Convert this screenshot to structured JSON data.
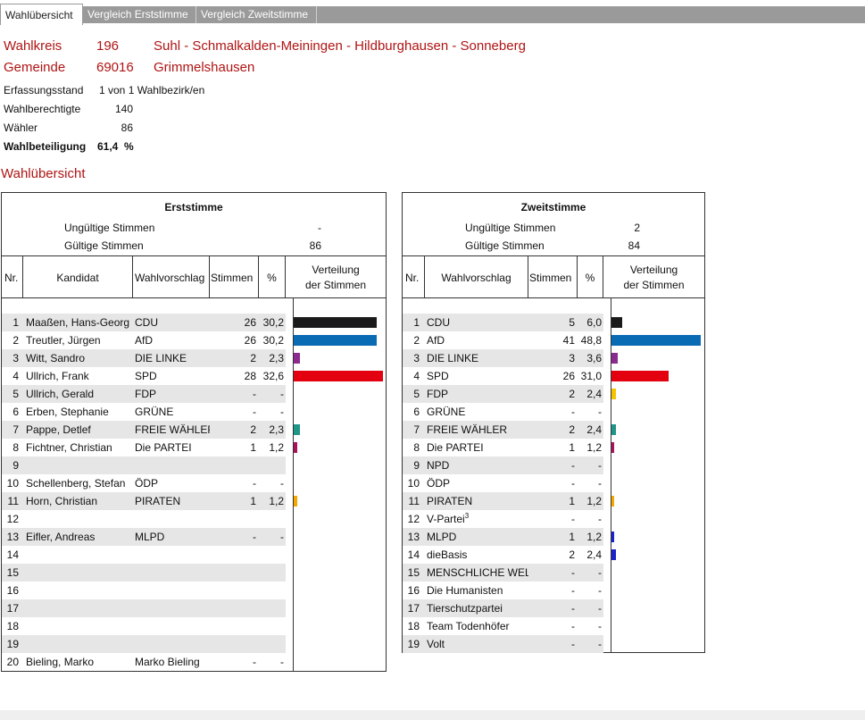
{
  "tabs": [
    {
      "label": "Wahlübersicht",
      "active": true
    },
    {
      "label": "Vergleich Erststimme",
      "active": false
    },
    {
      "label": "Vergleich Zweitstimme",
      "active": false
    }
  ],
  "header": {
    "wahlkreis_label": "Wahlkreis",
    "wahlkreis_nr": "196",
    "wahlkreis_name": "Suhl - Schmalkalden-Meiningen - Hildburghausen - Sonneberg",
    "gemeinde_label": "Gemeinde",
    "gemeinde_nr": "69016",
    "gemeinde_name": "Grimmelshausen"
  },
  "stats": {
    "erfassungsstand_label": "Erfassungsstand",
    "erfassungsstand_value": "1 von 1 Wahlbezirk/en",
    "wahlberechtigte_label": "Wahlberechtigte",
    "wahlberechtigte_value": "140",
    "waehler_label": "Wähler",
    "waehler_value": "86",
    "wahlbeteiligung_label": "Wahlbeteiligung",
    "wahlbeteiligung_value": "61,4",
    "wahlbeteiligung_unit": "%"
  },
  "section_title": "Wahlübersicht",
  "erst": {
    "title": "Erststimme",
    "ungueltig_label": "Ungültige Stimmen",
    "ungueltig_value": "-",
    "gueltig_label": "Gültige Stimmen",
    "gueltig_value": "86",
    "col_nr": "Nr.",
    "col_kandidat": "Kandidat",
    "col_wahlvorschlag": "Wahlvorschlag",
    "col_stimmen": "Stimmen",
    "col_pct": "%",
    "col_verteilung_1": "Verteilung",
    "col_verteilung_2": "der Stimmen",
    "rows": [
      {
        "nr": "1",
        "kandidat": "Maaßen, Hans-Georg",
        "vorschlag": "CDU",
        "stimmen": "26",
        "pct": "30,2",
        "value": 30.2,
        "color": "#1a1a1a"
      },
      {
        "nr": "2",
        "kandidat": "Treutler, Jürgen",
        "vorschlag": "AfD",
        "stimmen": "26",
        "pct": "30,2",
        "value": 30.2,
        "color": "#0a6bb5"
      },
      {
        "nr": "3",
        "kandidat": "Witt, Sandro",
        "vorschlag": "DIE LINKE",
        "stimmen": "2",
        "pct": "2,3",
        "value": 2.3,
        "color": "#8b2a8f"
      },
      {
        "nr": "4",
        "kandidat": "Ullrich, Frank",
        "vorschlag": "SPD",
        "stimmen": "28",
        "pct": "32,6",
        "value": 32.6,
        "color": "#e3000f"
      },
      {
        "nr": "5",
        "kandidat": "Ullrich, Gerald",
        "vorschlag": "FDP",
        "stimmen": "-",
        "pct": "-",
        "value": 0,
        "color": "#f5c400"
      },
      {
        "nr": "6",
        "kandidat": "Erben, Stephanie",
        "vorschlag": "GRÜNE",
        "stimmen": "-",
        "pct": "-",
        "value": 0,
        "color": "#3a9d23"
      },
      {
        "nr": "7",
        "kandidat": "Pappe, Detlef",
        "vorschlag": "FREIE WÄHLER",
        "stimmen": "2",
        "pct": "2,3",
        "value": 2.3,
        "color": "#1f9688"
      },
      {
        "nr": "8",
        "kandidat": "Fichtner, Christian",
        "vorschlag": "Die PARTEI",
        "stimmen": "1",
        "pct": "1,2",
        "value": 1.2,
        "color": "#a8135c"
      },
      {
        "nr": "9",
        "kandidat": "",
        "vorschlag": "",
        "stimmen": "",
        "pct": "",
        "value": 0,
        "color": "#ffffff"
      },
      {
        "nr": "10",
        "kandidat": "Schellenberg, Stefan",
        "vorschlag": "ÖDP",
        "stimmen": "-",
        "pct": "-",
        "value": 0,
        "color": "#f08c00"
      },
      {
        "nr": "11",
        "kandidat": "Horn, Christian",
        "vorschlag": "PIRATEN",
        "stimmen": "1",
        "pct": "1,2",
        "value": 1.2,
        "color": "#f5a800"
      },
      {
        "nr": "12",
        "kandidat": "",
        "vorschlag": "",
        "stimmen": "",
        "pct": "",
        "value": 0,
        "color": "#ffffff"
      },
      {
        "nr": "13",
        "kandidat": "Eifler, Andreas",
        "vorschlag": "MLPD",
        "stimmen": "-",
        "pct": "-",
        "value": 0,
        "color": "#cc0000"
      },
      {
        "nr": "14",
        "kandidat": "",
        "vorschlag": "",
        "stimmen": "",
        "pct": "",
        "value": 0,
        "color": "#ffffff"
      },
      {
        "nr": "15",
        "kandidat": "",
        "vorschlag": "",
        "stimmen": "",
        "pct": "",
        "value": 0,
        "color": "#ffffff"
      },
      {
        "nr": "16",
        "kandidat": "",
        "vorschlag": "",
        "stimmen": "",
        "pct": "",
        "value": 0,
        "color": "#ffffff"
      },
      {
        "nr": "17",
        "kandidat": "",
        "vorschlag": "",
        "stimmen": "",
        "pct": "",
        "value": 0,
        "color": "#ffffff"
      },
      {
        "nr": "18",
        "kandidat": "",
        "vorschlag": "",
        "stimmen": "",
        "pct": "",
        "value": 0,
        "color": "#ffffff"
      },
      {
        "nr": "19",
        "kandidat": "",
        "vorschlag": "",
        "stimmen": "",
        "pct": "",
        "value": 0,
        "color": "#ffffff"
      },
      {
        "nr": "20",
        "kandidat": "Bieling, Marko",
        "vorschlag": "Marko Bieling",
        "stimmen": "-",
        "pct": "-",
        "value": 0,
        "color": "#888888"
      }
    ]
  },
  "zweit": {
    "title": "Zweitstimme",
    "ungueltig_label": "Ungültige Stimmen",
    "ungueltig_value": "2",
    "gueltig_label": "Gültige Stimmen",
    "gueltig_value": "84",
    "col_nr": "Nr.",
    "col_wahlvorschlag": "Wahlvorschlag",
    "col_stimmen": "Stimmen",
    "col_pct": "%",
    "col_verteilung_1": "Verteilung",
    "col_verteilung_2": "der Stimmen",
    "rows": [
      {
        "nr": "1",
        "vorschlag": "CDU",
        "sup": "",
        "stimmen": "5",
        "pct": "6,0",
        "value": 6.0,
        "color": "#1a1a1a"
      },
      {
        "nr": "2",
        "vorschlag": "AfD",
        "sup": "",
        "stimmen": "41",
        "pct": "48,8",
        "value": 48.8,
        "color": "#0a6bb5"
      },
      {
        "nr": "3",
        "vorschlag": "DIE LINKE",
        "sup": "",
        "stimmen": "3",
        "pct": "3,6",
        "value": 3.6,
        "color": "#8b2a8f"
      },
      {
        "nr": "4",
        "vorschlag": "SPD",
        "sup": "",
        "stimmen": "26",
        "pct": "31,0",
        "value": 31.0,
        "color": "#e3000f"
      },
      {
        "nr": "5",
        "vorschlag": "FDP",
        "sup": "",
        "stimmen": "2",
        "pct": "2,4",
        "value": 2.4,
        "color": "#f5c400"
      },
      {
        "nr": "6",
        "vorschlag": "GRÜNE",
        "sup": "",
        "stimmen": "-",
        "pct": "-",
        "value": 0,
        "color": "#3a9d23"
      },
      {
        "nr": "7",
        "vorschlag": "FREIE WÄHLER",
        "sup": "",
        "stimmen": "2",
        "pct": "2,4",
        "value": 2.4,
        "color": "#1f9688"
      },
      {
        "nr": "8",
        "vorschlag": "Die PARTEI",
        "sup": "",
        "stimmen": "1",
        "pct": "1,2",
        "value": 1.2,
        "color": "#a8135c"
      },
      {
        "nr": "9",
        "vorschlag": "NPD",
        "sup": "",
        "stimmen": "-",
        "pct": "-",
        "value": 0,
        "color": "#8b4513"
      },
      {
        "nr": "10",
        "vorschlag": "ÖDP",
        "sup": "",
        "stimmen": "-",
        "pct": "-",
        "value": 0,
        "color": "#f08c00"
      },
      {
        "nr": "11",
        "vorschlag": "PIRATEN",
        "sup": "",
        "stimmen": "1",
        "pct": "1,2",
        "value": 1.2,
        "color": "#f5a800"
      },
      {
        "nr": "12",
        "vorschlag": "V-Partei",
        "sup": "3",
        "stimmen": "-",
        "pct": "-",
        "value": 0,
        "color": "#888888"
      },
      {
        "nr": "13",
        "vorschlag": "MLPD",
        "sup": "",
        "stimmen": "1",
        "pct": "1,2",
        "value": 1.2,
        "color": "#1a22c8"
      },
      {
        "nr": "14",
        "vorschlag": "dieBasis",
        "sup": "",
        "stimmen": "2",
        "pct": "2,4",
        "value": 2.4,
        "color": "#1a22c8"
      },
      {
        "nr": "15",
        "vorschlag": "MENSCHLICHE WELT",
        "sup": "",
        "stimmen": "-",
        "pct": "-",
        "value": 0,
        "color": "#888888"
      },
      {
        "nr": "16",
        "vorschlag": "Die Humanisten",
        "sup": "",
        "stimmen": "-",
        "pct": "-",
        "value": 0,
        "color": "#888888"
      },
      {
        "nr": "17",
        "vorschlag": "Tierschutzpartei",
        "sup": "",
        "stimmen": "-",
        "pct": "-",
        "value": 0,
        "color": "#888888"
      },
      {
        "nr": "18",
        "vorschlag": "Team Todenhöfer",
        "sup": "",
        "stimmen": "-",
        "pct": "-",
        "value": 0,
        "color": "#888888"
      },
      {
        "nr": "19",
        "vorschlag": "Volt",
        "sup": "",
        "stimmen": "-",
        "pct": "-",
        "value": 0,
        "color": "#888888"
      }
    ]
  }
}
